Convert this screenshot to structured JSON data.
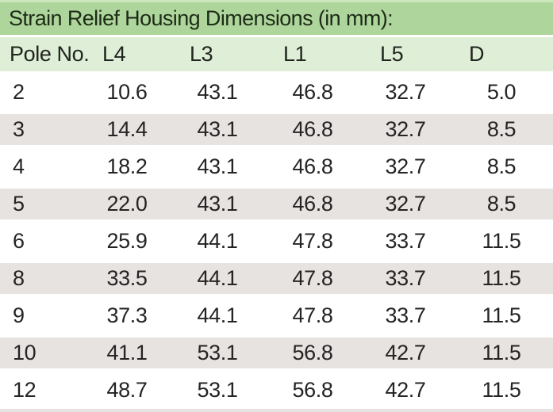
{
  "title": "Strain Relief Housing Dimensions (in mm):",
  "table": {
    "columns": [
      "Pole No.",
      "L4",
      "L3",
      "L1",
      "L5",
      "D"
    ],
    "rows": [
      [
        "2",
        "10.6",
        "43.1",
        "46.8",
        "32.7",
        "5.0"
      ],
      [
        "3",
        "14.4",
        "43.1",
        "46.8",
        "32.7",
        "8.5"
      ],
      [
        "4",
        "18.2",
        "43.1",
        "46.8",
        "32.7",
        "8.5"
      ],
      [
        "5",
        "22.0",
        "43.1",
        "46.8",
        "32.7",
        "8.5"
      ],
      [
        "6",
        "25.9",
        "44.1",
        "47.8",
        "33.7",
        "11.5"
      ],
      [
        "8",
        "33.5",
        "44.1",
        "47.8",
        "33.7",
        "11.5"
      ],
      [
        "9",
        "37.3",
        "44.1",
        "47.8",
        "33.7",
        "11.5"
      ],
      [
        "10",
        "41.1",
        "53.1",
        "56.8",
        "42.7",
        "11.5"
      ],
      [
        "12",
        "48.7",
        "53.1",
        "56.8",
        "42.7",
        "11.5"
      ]
    ]
  },
  "colors": {
    "title_bar_green": "#aed69c",
    "title_bar_top_edge": "#cde7bd",
    "header_row_green": "#dfeed6",
    "stripe_gray": "#e6e3e1",
    "title_text": "#1d2b17",
    "body_text": "#262324"
  }
}
